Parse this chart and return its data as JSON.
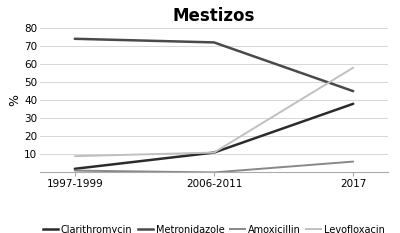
{
  "title": "Mestizos",
  "ylabel": "%",
  "x_labels": [
    "1997-1999",
    "2006-2011",
    "2017"
  ],
  "x_values": [
    0,
    1,
    2
  ],
  "series": [
    {
      "label": "Clarithromycin",
      "values": [
        2,
        11,
        38
      ],
      "color": "#2b2b2b",
      "linewidth": 1.8
    },
    {
      "label": "Metronidazole",
      "values": [
        74,
        72,
        45
      ],
      "color": "#4a4a4a",
      "linewidth": 1.8
    },
    {
      "label": "Amoxicillin",
      "values": [
        1,
        0,
        6
      ],
      "color": "#888888",
      "linewidth": 1.4
    },
    {
      "label": "Levofloxacin",
      "values": [
        9,
        11,
        58
      ],
      "color": "#c0c0c0",
      "linewidth": 1.4
    }
  ],
  "ylim": [
    0,
    80
  ],
  "yticks": [
    10,
    20,
    30,
    40,
    50,
    60,
    70,
    80
  ],
  "grid_color": "#d0d0d0",
  "background_color": "#ffffff",
  "title_fontsize": 12,
  "ylabel_fontsize": 9,
  "tick_fontsize": 7.5,
  "legend_fontsize": 7.0,
  "xlim": [
    -0.25,
    2.25
  ]
}
